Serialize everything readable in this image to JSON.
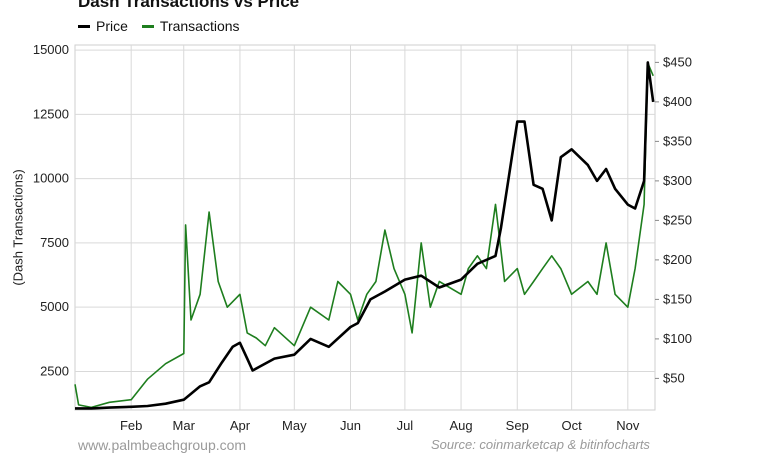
{
  "chart_data": {
    "type": "line",
    "title": "Dash Transactions vs Price",
    "x_ticks": [
      "Feb",
      "Mar",
      "Apr",
      "May",
      "Jun",
      "Jul",
      "Aug",
      "Sep",
      "Oct",
      "Nov"
    ],
    "y_left": {
      "label": "(Dash Transactions)",
      "ticks": [
        2500,
        5000,
        7500,
        10000,
        12500,
        15000
      ],
      "range": [
        1000,
        15200
      ]
    },
    "y_right": {
      "ticks": [
        "$50",
        "$100",
        "$150",
        "$200",
        "$250",
        "$300",
        "$350",
        "$400",
        "$450"
      ],
      "range": [
        10,
        472
      ]
    },
    "grid": true,
    "legend_position": "top-left",
    "series": [
      {
        "name": "Price",
        "axis": "right",
        "color": "#000000",
        "points": [
          [
            "Jan 1",
            12
          ],
          [
            "Jan 10",
            12
          ],
          [
            "Jan 20",
            13
          ],
          [
            "Feb 1",
            14
          ],
          [
            "Feb 10",
            15
          ],
          [
            "Feb 20",
            18
          ],
          [
            "Mar 1",
            23
          ],
          [
            "Mar 10",
            40
          ],
          [
            "Mar 15",
            45
          ],
          [
            "Mar 22",
            70
          ],
          [
            "Mar 28",
            90
          ],
          [
            "Apr 1",
            95
          ],
          [
            "Apr 5",
            75
          ],
          [
            "Apr 8",
            60
          ],
          [
            "Apr 12",
            65
          ],
          [
            "Apr 20",
            75
          ],
          [
            "May 1",
            80
          ],
          [
            "May 10",
            100
          ],
          [
            "May 20",
            90
          ],
          [
            "Jun 1",
            115
          ],
          [
            "Jun 5",
            120
          ],
          [
            "Jun 12",
            150
          ],
          [
            "Jun 20",
            160
          ],
          [
            "Jul 1",
            175
          ],
          [
            "Jul 10",
            180
          ],
          [
            "Jul 20",
            165
          ],
          [
            "Aug 1",
            175
          ],
          [
            "Aug 10",
            195
          ],
          [
            "Aug 20",
            205
          ],
          [
            "Aug 23",
            240
          ],
          [
            "Aug 27",
            300
          ],
          [
            "Sep 1",
            375
          ],
          [
            "Sep 5",
            375
          ],
          [
            "Sep 10",
            295
          ],
          [
            "Sep 15",
            290
          ],
          [
            "Sep 20",
            250
          ],
          [
            "Sep 25",
            330
          ],
          [
            "Oct 1",
            340
          ],
          [
            "Oct 10",
            320
          ],
          [
            "Oct 15",
            300
          ],
          [
            "Oct 20",
            315
          ],
          [
            "Oct 25",
            290
          ],
          [
            "Nov 1",
            270
          ],
          [
            "Nov 5",
            265
          ],
          [
            "Nov 10",
            300
          ],
          [
            "Nov 12",
            450
          ],
          [
            "Nov 15",
            400
          ]
        ]
      },
      {
        "name": "Transactions",
        "axis": "left",
        "color": "#1e7e1e",
        "points": [
          [
            "Jan 1",
            2000
          ],
          [
            "Jan 3",
            1200
          ],
          [
            "Jan 10",
            1100
          ],
          [
            "Jan 20",
            1300
          ],
          [
            "Feb 1",
            1400
          ],
          [
            "Feb 10",
            2200
          ],
          [
            "Feb 20",
            2800
          ],
          [
            "Mar 1",
            3200
          ],
          [
            "Mar 2",
            8200
          ],
          [
            "Mar 5",
            4500
          ],
          [
            "Mar 10",
            5500
          ],
          [
            "Mar 15",
            8700
          ],
          [
            "Mar 20",
            6000
          ],
          [
            "Mar 25",
            5000
          ],
          [
            "Apr 1",
            5500
          ],
          [
            "Apr 5",
            4000
          ],
          [
            "Apr 10",
            3800
          ],
          [
            "Apr 15",
            3500
          ],
          [
            "Apr 20",
            4200
          ],
          [
            "May 1",
            3500
          ],
          [
            "May 10",
            5000
          ],
          [
            "May 20",
            4500
          ],
          [
            "May 25",
            6000
          ],
          [
            "Jun 1",
            5500
          ],
          [
            "Jun 5",
            4500
          ],
          [
            "Jun 10",
            5500
          ],
          [
            "Jun 15",
            6000
          ],
          [
            "Jun 20",
            8000
          ],
          [
            "Jun 25",
            6500
          ],
          [
            "Jul 1",
            5500
          ],
          [
            "Jul 5",
            4000
          ],
          [
            "Jul 10",
            7500
          ],
          [
            "Jul 15",
            5000
          ],
          [
            "Jul 20",
            6000
          ],
          [
            "Aug 1",
            5500
          ],
          [
            "Aug 5",
            6500
          ],
          [
            "Aug 10",
            7000
          ],
          [
            "Aug 15",
            6500
          ],
          [
            "Aug 20",
            9000
          ],
          [
            "Aug 25",
            6000
          ],
          [
            "Sep 1",
            6500
          ],
          [
            "Sep 5",
            5500
          ],
          [
            "Sep 10",
            6000
          ],
          [
            "Sep 15",
            6500
          ],
          [
            "Sep 20",
            7000
          ],
          [
            "Sep 25",
            6500
          ],
          [
            "Oct 1",
            5500
          ],
          [
            "Oct 10",
            6000
          ],
          [
            "Oct 15",
            5500
          ],
          [
            "Oct 20",
            7500
          ],
          [
            "Oct 25",
            5500
          ],
          [
            "Nov 1",
            5000
          ],
          [
            "Nov 5",
            6500
          ],
          [
            "Nov 10",
            9000
          ],
          [
            "Nov 12",
            14500
          ],
          [
            "Nov 15",
            14000
          ]
        ]
      }
    ]
  },
  "footer": {
    "site": "www.palmbeachgroup.com",
    "source": "Source: coinmarketcap & bitinfocharts"
  }
}
